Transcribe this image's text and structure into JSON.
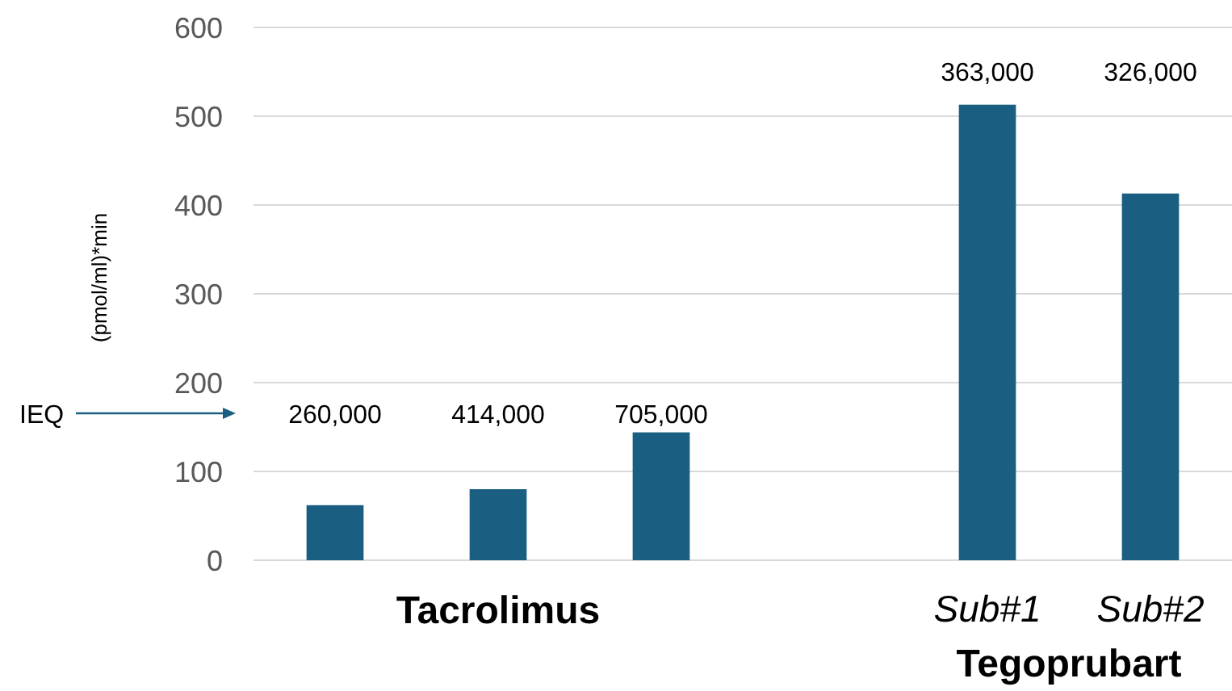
{
  "chart_data": {
    "type": "bar",
    "categories": [
      null,
      null,
      null,
      null,
      "Sub#1",
      "Sub#2"
    ],
    "values": [
      62,
      80,
      144,
      null,
      513,
      413
    ],
    "color": "#1a5f82",
    "ylabel": "(pmol/ml)*min",
    "ylim": [
      0,
      600
    ],
    "yticks": [
      0,
      100,
      200,
      300,
      400,
      500,
      600
    ],
    "grid": "y",
    "annotations": [
      "IEQ",
      "Tacrolimus",
      "Tegoprubart",
      "260,000",
      "414,000",
      "705,000",
      "363,000",
      "326,000"
    ]
  }
}
